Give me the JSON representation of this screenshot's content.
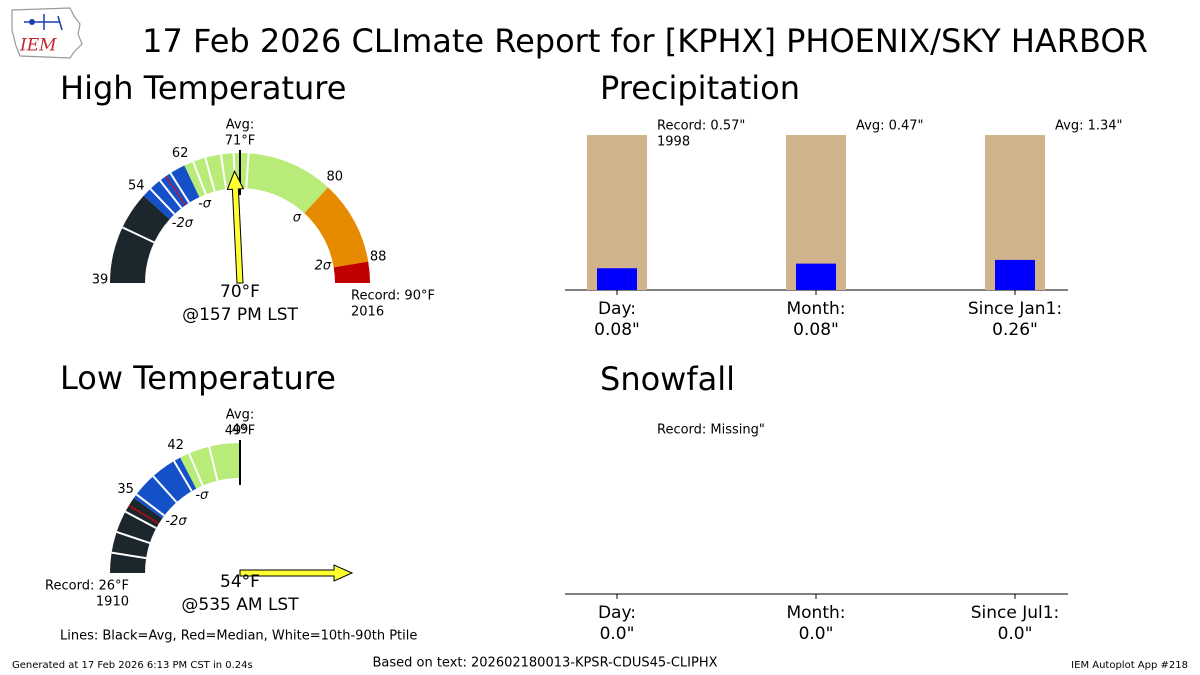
{
  "title": "17 Feb 2026 CLImate Report for [KPHX] PHOENIX/SKY HARBOR",
  "logo_text": "IEM",
  "chart_data": [
    {
      "type": "gauge",
      "title": "High Temperature",
      "ylim": [
        39,
        90
      ],
      "yticks": [
        39,
        54,
        62,
        80,
        88
      ],
      "sigma_ticks": [
        {
          "value": 54,
          "label": "-2σ"
        },
        {
          "value": 62,
          "label": "-σ"
        },
        {
          "value": 80,
          "label": "σ"
        },
        {
          "value": 88,
          "label": "2σ"
        }
      ],
      "bands": [
        {
          "from": 39,
          "to": 54,
          "color": "#1c262d"
        },
        {
          "from": 54,
          "to": 62,
          "color": "#1450c8"
        },
        {
          "from": 62,
          "to": 80,
          "color": "#b8eb78"
        },
        {
          "from": 80,
          "to": 88,
          "color": "#e68a00"
        },
        {
          "from": 88,
          "to": 90,
          "color": "#c00000"
        }
      ],
      "avg": 71,
      "avg_label": "Avg:",
      "avg_value_label": "71°F",
      "median": 58.6,
      "percentiles": [
        48,
        55.5,
        57.5,
        59.5,
        63.5,
        65.5,
        68,
        70,
        71.8
      ],
      "observed": 70,
      "observed_label": "70°F",
      "observed_time": "@157 PM LST",
      "pointer_color": "#ffff33",
      "record": 90,
      "record_label": "Record: 90°F",
      "record_year": "2016"
    },
    {
      "type": "gauge",
      "title": "Low Temperature",
      "ylim": [
        26,
        49
      ],
      "yticks": [
        35,
        42,
        49
      ],
      "sigma_ticks": [
        {
          "value": 35,
          "label": "-2σ"
        },
        {
          "value": 42,
          "label": "-σ"
        }
      ],
      "bands": [
        {
          "from": 26,
          "to": 35,
          "color": "#1c262d"
        },
        {
          "from": 35,
          "to": 42,
          "color": "#1450c8"
        },
        {
          "from": 42,
          "to": 49,
          "color": "#b8eb78"
        }
      ],
      "avg": 49,
      "avg_label": "Avg:",
      "avg_value_label": "49°F",
      "median": 34.0,
      "percentiles": [
        28.3,
        30.7,
        33.2,
        35.5,
        38.3,
        41.2,
        43.1,
        45.5
      ],
      "observed": 54,
      "observed_label": "54°F",
      "observed_time": "@535 AM LST",
      "pointer_color": "#ffff33",
      "record": 26,
      "record_label": "Record: 26°F",
      "record_year": "1910"
    },
    {
      "type": "bar",
      "title": "Precipitation",
      "categories": [
        "Day:",
        "Month:",
        "Since Jan1:"
      ],
      "values": [
        0.08,
        0.08,
        0.26
      ],
      "value_labels": [
        "0.08\"",
        "0.08\"",
        "0.26\""
      ],
      "color": "#0000ff",
      "references": [
        0.57,
        0.47,
        1.34
      ],
      "reference_labels": [
        "Record: 0.57\"",
        "Avg: 0.47\"",
        "Avg: 1.34\""
      ],
      "reference_notes": [
        "1998",
        null,
        null
      ],
      "reference_color": "#d2b48c"
    },
    {
      "type": "bar",
      "title": "Snowfall",
      "categories": [
        "Day:",
        "Month:",
        "Since Jul1:"
      ],
      "values": [
        0.0,
        0.0,
        0.0
      ],
      "value_labels": [
        "0.0\"",
        "0.0\"",
        "0.0\""
      ],
      "color": "#0000ff",
      "references": [
        null,
        null,
        null
      ],
      "reference_labels": [
        "Record: Missing\"",
        null,
        null
      ],
      "reference_notes": [
        null,
        null,
        null
      ],
      "reference_color": "#d2b48c"
    }
  ],
  "footer": {
    "legend_note": "Lines: Black=Avg, Red=Median, White=10th-90th Ptile",
    "generated": "Generated at 17 Feb 2026 6:13 PM CST in 0.24s",
    "source": "Based on text: 202602180013-KPSR-CDUS45-CLIPHX",
    "app": "IEM Autoplot App #218"
  }
}
